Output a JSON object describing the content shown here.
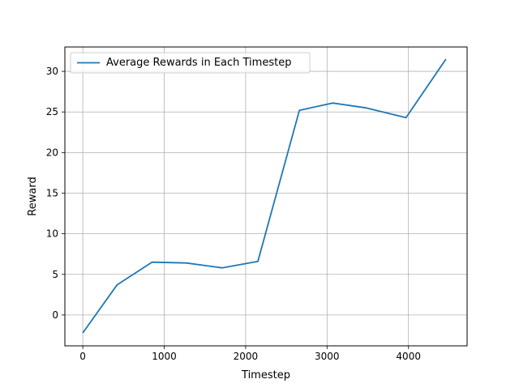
{
  "chart_data": {
    "type": "line",
    "title": "",
    "xlabel": "Timestep",
    "ylabel": "Reward",
    "xlim": [
      -220,
      4720
    ],
    "ylim": [
      -3.8,
      33.0
    ],
    "xticks": [
      0,
      1000,
      2000,
      3000,
      4000
    ],
    "yticks": [
      0,
      5,
      10,
      15,
      20,
      25,
      30
    ],
    "grid": true,
    "legend_position": "top-left",
    "series": [
      {
        "name": "Average Rewards in Each Timestep",
        "color": "#1f77b4",
        "x": [
          0,
          420,
          850,
          1270,
          1710,
          2150,
          2660,
          3070,
          3480,
          3970,
          4460
        ],
        "y": [
          -2.2,
          3.7,
          6.5,
          6.4,
          5.8,
          6.6,
          25.2,
          26.1,
          25.5,
          24.3,
          31.5
        ]
      }
    ]
  }
}
